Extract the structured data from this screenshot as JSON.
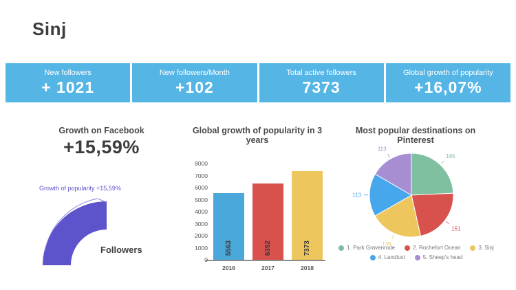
{
  "page": {
    "title": "Sinj"
  },
  "colors": {
    "band": "#55b6e6",
    "gauge": "#5d54cb",
    "heading": "#4a4a4a"
  },
  "stats": {
    "cards": [
      {
        "label": "New followers",
        "value": "+ 1021"
      },
      {
        "label": "New followers/Month",
        "value": "+102"
      },
      {
        "label": "Total active followers",
        "value": "7373"
      },
      {
        "label": "Global growth of popularity",
        "value": "+16,07%"
      }
    ]
  },
  "facebook_section": {
    "title": "Growth on Facebook",
    "value": "+15,59%",
    "gauge_label": "Growth of popularity +15,59%",
    "axis_label": "Followers"
  },
  "chart_data": [
    {
      "type": "pie",
      "subtype": "quarter-donut-gauge",
      "title": "Growth on Facebook",
      "value_label": "+15,59%",
      "annotation": "Growth of popularity +15,59%",
      "series_label": "Followers",
      "color": "#5d54cb"
    },
    {
      "type": "bar",
      "title": "Global growth of popularity in 3 years",
      "categories": [
        "2016",
        "2017",
        "2018"
      ],
      "values": [
        5563,
        6352,
        7373
      ],
      "colors": [
        "#4aa7d9",
        "#d8514d",
        "#edc75e"
      ],
      "ylim": [
        0,
        8000
      ],
      "ytick_step": 1000,
      "grid": false,
      "value_labels": "rotated-vertical-inside-bar-bottom"
    },
    {
      "type": "pie",
      "title": "Most popular destinations on Pinterest",
      "labels": [
        "1. Park Gravenrode",
        "2. Rochefort Ocean",
        "3. Sinj",
        "4. Landlust",
        "5. Sheep's head"
      ],
      "values": [
        165,
        151,
        138,
        113,
        113
      ],
      "colors": [
        "#7fc0a1",
        "#d8514d",
        "#edc75e",
        "#47a7ec",
        "#a78ed3"
      ],
      "legend_position": "bottom",
      "legend_rows": [
        3,
        2
      ]
    }
  ]
}
